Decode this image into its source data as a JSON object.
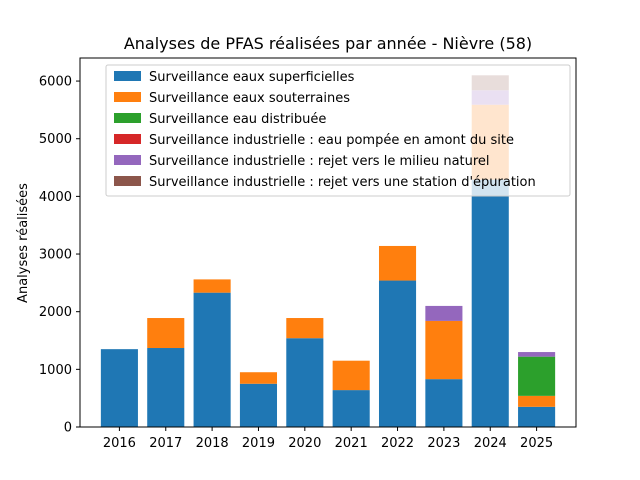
{
  "chart_data": {
    "type": "bar",
    "stacked": true,
    "title": "Analyses de PFAS réalisées par année - Nièvre (58)",
    "xlabel": "",
    "ylabel": "Analyses réalisées",
    "ylim": [
      0,
      6400
    ],
    "yticks": [
      0,
      1000,
      2000,
      3000,
      4000,
      5000,
      6000
    ],
    "categories": [
      "2016",
      "2017",
      "2018",
      "2019",
      "2020",
      "2021",
      "2022",
      "2023",
      "2024",
      "2025"
    ],
    "series": [
      {
        "name": "Surveillance eaux superficielles",
        "color": "#1f77b4",
        "values": [
          1350,
          1370,
          2330,
          750,
          1540,
          640,
          2540,
          830,
          4290,
          350
        ]
      },
      {
        "name": "Surveillance eaux souterraines",
        "color": "#ff7f0e",
        "values": [
          0,
          520,
          230,
          200,
          350,
          510,
          600,
          1010,
          1300,
          190
        ]
      },
      {
        "name": "Surveillance eau distribuée",
        "color": "#2ca02c",
        "values": [
          0,
          0,
          0,
          0,
          0,
          0,
          0,
          0,
          0,
          680
        ]
      },
      {
        "name": "Surveillance industrielle : eau pompée en amont du site",
        "color": "#d62728",
        "values": [
          0,
          0,
          0,
          0,
          0,
          0,
          0,
          0,
          0,
          0
        ]
      },
      {
        "name": "Surveillance industrielle : rejet vers le milieu naturel",
        "color": "#9467bd",
        "values": [
          0,
          0,
          0,
          0,
          0,
          0,
          0,
          260,
          250,
          80
        ]
      },
      {
        "name": "Surveillance industrielle : rejet vers une station d'épuration",
        "color": "#8c564b",
        "values": [
          0,
          0,
          0,
          0,
          0,
          0,
          0,
          0,
          260,
          0
        ]
      }
    ],
    "grid": false,
    "legend_position": "upper-left"
  }
}
